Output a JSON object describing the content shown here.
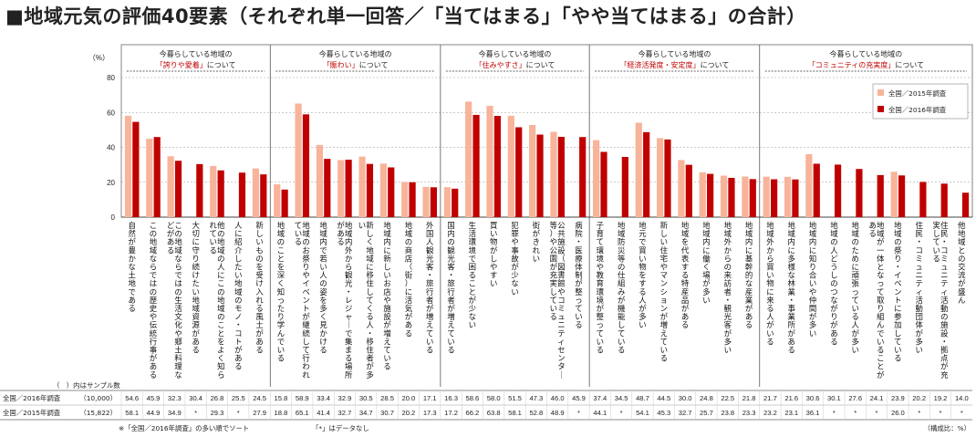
{
  "title": "■地域元気の評価40要素（それぞれ単一回答／「当てはまる」「やや当てはまる」の合計）",
  "unit_label": "（%）",
  "table_header": "（　）内はサンプル数",
  "footnote_left": "※「全国／2016年調査」の多い順でソート",
  "footnote_mid": "「*」はデータなし",
  "footnote_right": "（構成比：%）",
  "colors": {
    "series2015": "#f7b49a",
    "series2016": "#c00000",
    "grid": "#999999"
  },
  "chart_data": {
    "type": "bar",
    "ylim": [
      0,
      80
    ],
    "yticks": [
      0,
      20,
      40,
      60,
      80
    ],
    "legend_position": "top-right",
    "groups": [
      {
        "pre": "今暮らしている地域の",
        "highlight": "「誇りや愛着」",
        "post": "について",
        "start": 0,
        "count": 7
      },
      {
        "pre": "今暮らしている地域の",
        "highlight": "「賑わい」",
        "post": "について",
        "start": 7,
        "count": 8
      },
      {
        "pre": "今暮らしている地域の",
        "highlight": "「住みやすさ」",
        "post": "について",
        "start": 15,
        "count": 7
      },
      {
        "pre": "今暮らしている地域の",
        "highlight": "「経済活発度・安定度」",
        "post": "について",
        "start": 22,
        "count": 8
      },
      {
        "pre": "今暮らしている地域の",
        "highlight": "「コミュニティの充実度」",
        "post": "について",
        "start": 30,
        "count": 10
      }
    ],
    "categories": [
      "自然が豊かな土地である",
      "この地域ならではの歴史や伝統行事がある",
      "この地域ならではの生活文化や郷土料理などがある",
      "大切に守り続けたい地域資源がある",
      "他の地域の人にこの地域のことをよく知られている",
      "人に紹介したい地域のモノ・コトがある",
      "新しいものを受け入れる風土がある",
      "地域のことを深く知ったり学んでいる",
      "地域のお祭りやイベントが継続して行われている",
      "地域内で若い人の姿を多く見かける",
      "地域内外から観光・レジャーで集まる場所がある",
      "新しく地域に移住してくる人・移住者が多い",
      "地域内に新しいお店や施設が増えている",
      "地域の商店（街）に活気がある",
      "外国人観光客・旅行者が増えている",
      "国内の観光客・旅行者が増えている",
      "生活環境で困ることが少ない",
      "買い物がしやすい",
      "犯罪や事故が少ない",
      "街がきれい",
      "公共施設（図書館やコミュニティセンター等）や公園が充実している",
      "病院・医療体制が整っている",
      "子育て環境や教育環境が整っている",
      "地域防災等の仕組みが機能している",
      "地元で買い物をする人が多い",
      "新しい住宅やマンションが増えている",
      "地域を代表する特産品がある",
      "地域内に働く場が多い",
      "地域外からの来訪者・観光客が多い",
      "地域内に基幹的な産業がある",
      "地域外から買い物に来る人がいる",
      "地域内に多様な林業・事業所がある",
      "地域内に知り合いや仲間が多い",
      "地域の人どうしのつながりがある",
      "地域のために頑張っている人が多い",
      "地域が一体となって取り組んでいることがある",
      "地域の祭り・イベントに参加している",
      "住民・コミュニティ活動団体が多い",
      "住民・コミュニティ活動の施設・拠点が充実している",
      "他地域との交流が盛ん"
    ],
    "series": [
      {
        "name": "全国／2016年調査",
        "sample": "（10,000）",
        "values": [
          54.6,
          45.9,
          32.3,
          30.4,
          26.8,
          25.5,
          24.5,
          15.8,
          58.9,
          33.4,
          32.9,
          30.5,
          28.5,
          20.0,
          17.1,
          16.3,
          58.6,
          58.0,
          51.5,
          47.3,
          46.0,
          45.9,
          37.4,
          34.5,
          48.7,
          44.5,
          30.0,
          24.8,
          22.5,
          21.8,
          21.7,
          21.6,
          30.6,
          30.1,
          27.6,
          24.1,
          23.9,
          20.2,
          19.2,
          14.0
        ]
      },
      {
        "name": "全国／2015年調査",
        "sample": "（15,822）",
        "values": [
          58.1,
          44.9,
          34.9,
          null,
          29.3,
          null,
          27.9,
          18.8,
          65.1,
          41.4,
          32.7,
          34.7,
          30.7,
          20.2,
          17.3,
          17.2,
          66.2,
          63.8,
          58.1,
          52.8,
          48.9,
          null,
          44.1,
          null,
          54.1,
          45.3,
          32.7,
          25.7,
          23.8,
          23.3,
          23.2,
          23.1,
          36.1,
          null,
          null,
          null,
          26.0,
          null,
          null,
          null
        ]
      }
    ]
  }
}
